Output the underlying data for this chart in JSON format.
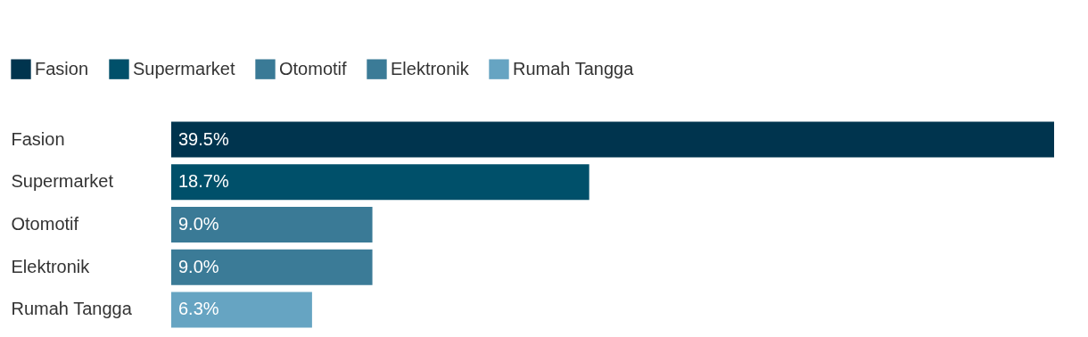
{
  "chart_data": {
    "type": "bar",
    "orientation": "horizontal",
    "categories": [
      "Fasion",
      "Supermarket",
      "Otomotif",
      "Elektronik",
      "Rumah Tangga"
    ],
    "series": [
      {
        "name": "Fasion",
        "color": "#00344e",
        "values": [
          39.5,
          null,
          null,
          null,
          null
        ],
        "value_labels": [
          "39.5%",
          null,
          null,
          null,
          null
        ]
      },
      {
        "name": "Supermarket",
        "color": "#00506a",
        "values": [
          null,
          18.7,
          null,
          null,
          null
        ],
        "value_labels": [
          null,
          "18.7%",
          null,
          null,
          null
        ]
      },
      {
        "name": "Otomotif",
        "color": "#3a7a96",
        "values": [
          null,
          null,
          9.0,
          null,
          null
        ],
        "value_labels": [
          null,
          null,
          "9.0%",
          null,
          null
        ]
      },
      {
        "name": "Elektronik",
        "color": "#3b7b97",
        "values": [
          null,
          null,
          null,
          9.0,
          null
        ],
        "value_labels": [
          null,
          null,
          null,
          "9.0%",
          null
        ]
      },
      {
        "name": "Rumah Tangga",
        "color": "#66a4c2",
        "values": [
          null,
          null,
          null,
          null,
          6.3
        ],
        "value_labels": [
          null,
          null,
          null,
          null,
          "6.3%"
        ]
      }
    ],
    "legend": "top left"
  }
}
